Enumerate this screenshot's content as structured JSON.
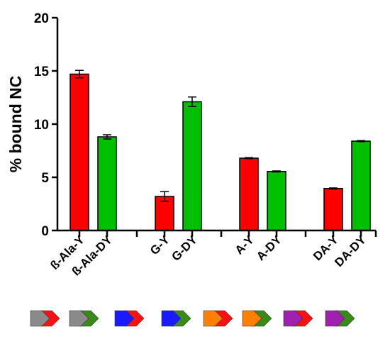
{
  "chart_data": {
    "type": "bar",
    "ylabel": "% bound NC",
    "ylim": [
      0,
      20
    ],
    "yticks": [
      0,
      5,
      10,
      15,
      20
    ],
    "grid": false,
    "colors": {
      "red": "#ff0000",
      "green": "#00c000"
    },
    "groups": [
      {
        "bars": [
          {
            "label": "ß-Ala-Y",
            "value": 14.7,
            "error": 0.35,
            "color": "red"
          },
          {
            "label": "ß-Ala-DY",
            "value": 8.8,
            "error": 0.2,
            "color": "green"
          }
        ]
      },
      {
        "bars": [
          {
            "label": "G-Y",
            "value": 3.2,
            "error": 0.45,
            "color": "red"
          },
          {
            "label": "G-DY",
            "value": 12.1,
            "error": 0.45,
            "color": "green"
          }
        ]
      },
      {
        "bars": [
          {
            "label": "A-Y",
            "value": 6.8,
            "error": 0.05,
            "color": "red"
          },
          {
            "label": "A-DY",
            "value": 5.55,
            "error": 0.05,
            "color": "green"
          }
        ]
      },
      {
        "bars": [
          {
            "label": "DA-Y",
            "value": 3.95,
            "error": 0.05,
            "color": "red"
          },
          {
            "label": "DA-DY",
            "value": 8.4,
            "error": 0.05,
            "color": "green"
          }
        ]
      }
    ],
    "legend_icons": [
      {
        "first": "gray",
        "second": "red"
      },
      {
        "first": "gray",
        "second": "green"
      },
      {
        "first": "blue",
        "second": "red"
      },
      {
        "first": "blue",
        "second": "green"
      },
      {
        "first": "orange",
        "second": "red"
      },
      {
        "first": "orange",
        "second": "green"
      },
      {
        "first": "purple",
        "second": "red"
      },
      {
        "first": "purple",
        "second": "green"
      }
    ],
    "icon_colors": {
      "gray": "#8a8a8a",
      "blue": "#1a1aff",
      "orange": "#ff8000",
      "purple": "#a020b0",
      "red": "#ff1010",
      "green": "#3a8a1a"
    }
  }
}
